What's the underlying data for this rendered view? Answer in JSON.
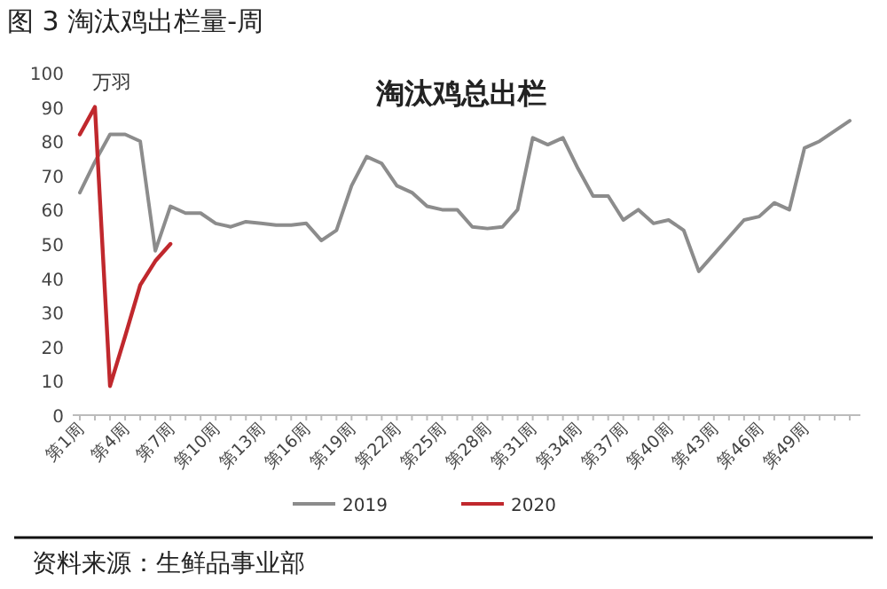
{
  "chart_data": {
    "type": "line",
    "title": "图 3 淘汰鸡出栏量-周",
    "subtitle": "淘汰鸡总出栏",
    "ylabel": "万羽",
    "categories": [
      "第1周",
      null,
      null,
      "第4周",
      null,
      null,
      "第7周",
      null,
      null,
      "第10周",
      null,
      null,
      "第13周",
      null,
      null,
      "第16周",
      null,
      null,
      "第19周",
      null,
      null,
      "第22周",
      null,
      null,
      "第25周",
      null,
      null,
      "第28周",
      null,
      null,
      "第31周",
      null,
      null,
      "第34周",
      null,
      null,
      "第37周",
      null,
      null,
      "第40周",
      null,
      null,
      "第43周",
      null,
      null,
      "第46周",
      null,
      null,
      "第49周",
      null,
      null,
      null
    ],
    "series": [
      {
        "name": "2019",
        "color": "#8c8c8c",
        "values": [
          65,
          74,
          82,
          82,
          80,
          48,
          61,
          59,
          59,
          56,
          55,
          56.5,
          56,
          55.5,
          55.5,
          56,
          51,
          54,
          67,
          75.5,
          73.5,
          67,
          65,
          61,
          60,
          60,
          55,
          54.5,
          55,
          60,
          81,
          79,
          81,
          72,
          64,
          64,
          57,
          60,
          56,
          57,
          54,
          42,
          47,
          52,
          57,
          58,
          62,
          60,
          78,
          80,
          83,
          86
        ]
      },
      {
        "name": "2020",
        "color": "#c0282d",
        "values": [
          82,
          90,
          8.5,
          23,
          38,
          45,
          50,
          null,
          null,
          null,
          null,
          null,
          null,
          null,
          null,
          null,
          null,
          null,
          null,
          null,
          null,
          null,
          null,
          null,
          null,
          null,
          null,
          null,
          null,
          null,
          null,
          null,
          null,
          null,
          null,
          null,
          null,
          null,
          null,
          null,
          null,
          null,
          null,
          null,
          null,
          null,
          null,
          null,
          null,
          null,
          null,
          null
        ]
      }
    ],
    "ylim": [
      0,
      100
    ],
    "yticks": [
      0,
      10,
      20,
      30,
      40,
      50,
      60,
      70,
      80,
      90,
      100
    ],
    "legend": "bottom",
    "grid": false,
    "marker": "none",
    "line_style": "solid",
    "annotations": [
      "资料来源：生鲜品事业部"
    ]
  }
}
